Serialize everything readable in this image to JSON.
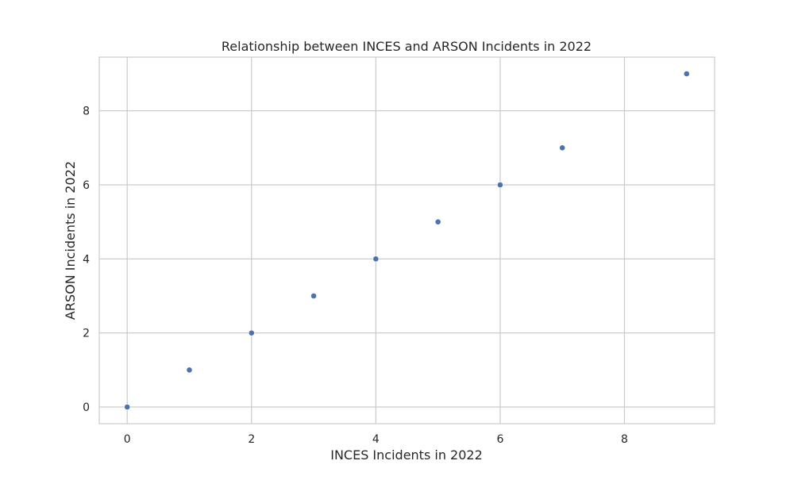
{
  "chart_data": {
    "type": "scatter",
    "title": "Relationship between INCES and ARSON Incidents in 2022",
    "xlabel": "INCES Incidents in 2022",
    "ylabel": "ARSON Incidents in 2022",
    "xlim": [
      -0.45,
      9.45
    ],
    "ylim": [
      -0.45,
      9.45
    ],
    "xticks": [
      0,
      2,
      4,
      6,
      8
    ],
    "yticks": [
      0,
      2,
      4,
      6,
      8
    ],
    "grid": true,
    "colors": {
      "point": "#4c72b0",
      "grid": "#cccccc",
      "frame": "#cccccc",
      "text": "#262626",
      "background": "#ffffff"
    },
    "points": [
      {
        "x": 0,
        "y": 0
      },
      {
        "x": 1,
        "y": 1
      },
      {
        "x": 2,
        "y": 2
      },
      {
        "x": 3,
        "y": 3
      },
      {
        "x": 4,
        "y": 4
      },
      {
        "x": 5,
        "y": 5
      },
      {
        "x": 6,
        "y": 6
      },
      {
        "x": 7,
        "y": 7
      },
      {
        "x": 9,
        "y": 9
      }
    ]
  }
}
